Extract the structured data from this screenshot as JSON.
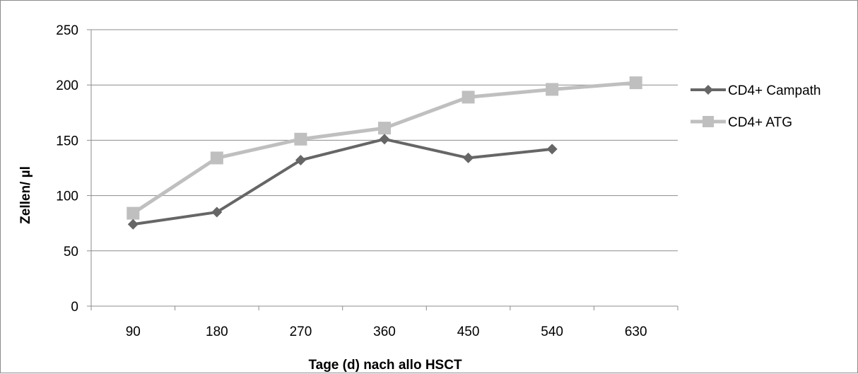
{
  "chart_data": {
    "type": "line",
    "xlabel": "Tage (d) nach allo HSCT",
    "ylabel": "Zellen/ µl",
    "categories": [
      "90",
      "180",
      "270",
      "360",
      "450",
      "540",
      "630"
    ],
    "ylim": [
      0,
      250
    ],
    "yticks": [
      0,
      50,
      100,
      150,
      200,
      250
    ],
    "grid": true,
    "legend_position": "right",
    "series": [
      {
        "name": "CD4+ Campath",
        "color": "#666666",
        "marker": "diamond",
        "values": [
          74,
          85,
          132,
          151,
          134,
          142,
          null
        ]
      },
      {
        "name": "CD4+ ATG",
        "color": "#bfbfbf",
        "marker": "square",
        "values": [
          84,
          134,
          151,
          161,
          189,
          196,
          202
        ]
      }
    ]
  }
}
